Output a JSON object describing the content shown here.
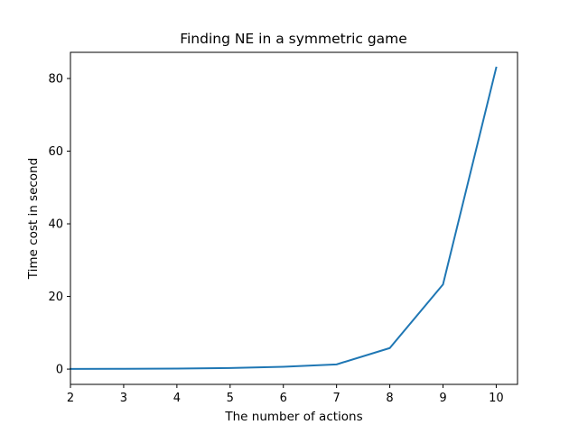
{
  "chart_data": {
    "type": "line",
    "title": "Finding NE in a symmetric game",
    "xlabel": "The number of actions",
    "ylabel": "Time cost in second",
    "x": [
      2,
      3,
      4,
      5,
      6,
      7,
      8,
      9,
      10
    ],
    "series": [
      {
        "values": [
          0.05,
          0.08,
          0.15,
          0.3,
          0.65,
          1.3,
          5.8,
          23.3,
          83.0
        ],
        "color": "#1f77b4"
      }
    ],
    "xlim": [
      2,
      10.4
    ],
    "ylim": [
      -4.2,
      87.2
    ],
    "xticks": [
      "2",
      "3",
      "4",
      "5",
      "6",
      "7",
      "8",
      "9",
      "10"
    ],
    "yticks": [
      "0",
      "20",
      "40",
      "60",
      "80"
    ],
    "grid": false,
    "legend": "none"
  }
}
